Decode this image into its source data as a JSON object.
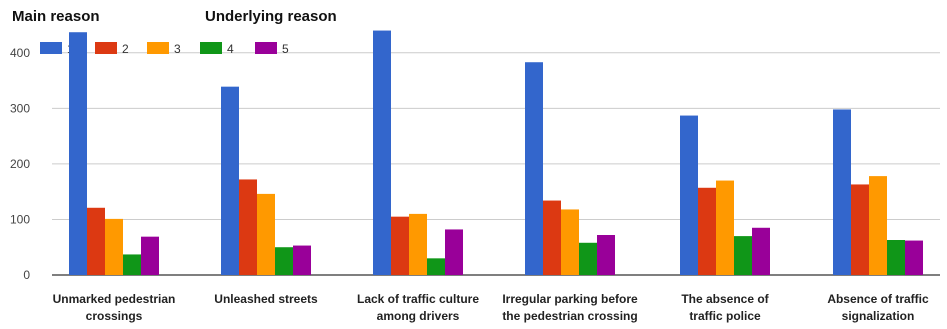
{
  "headers": {
    "main": "Main reason",
    "underlying": "Underlying reason"
  },
  "chart_data": {
    "type": "bar",
    "categories": [
      [
        "Unmarked pedestrian",
        "crossings"
      ],
      [
        "Unleashed streets"
      ],
      [
        "Lack of traffic culture",
        "among drivers"
      ],
      [
        "Irregular parking before",
        "the pedestrian crossing"
      ],
      [
        "The absence of",
        "traffic police"
      ],
      [
        "Absence of traffic",
        "signalization"
      ]
    ],
    "series": [
      {
        "name": "1",
        "color": "#3366cc",
        "values": [
          437,
          339,
          440,
          383,
          287,
          298
        ]
      },
      {
        "name": "2",
        "color": "#dc3912",
        "values": [
          121,
          172,
          105,
          134,
          157,
          163
        ]
      },
      {
        "name": "3",
        "color": "#ff9900",
        "values": [
          101,
          146,
          110,
          118,
          170,
          178
        ]
      },
      {
        "name": "4",
        "color": "#109618",
        "values": [
          37,
          50,
          30,
          58,
          70,
          63
        ]
      },
      {
        "name": "5",
        "color": "#990099",
        "values": [
          69,
          53,
          82,
          72,
          85,
          62
        ]
      }
    ],
    "yticks": [
      0,
      100,
      200,
      300,
      400
    ],
    "ylim": [
      0,
      450
    ],
    "legend_position": "top-left",
    "grid": true
  }
}
